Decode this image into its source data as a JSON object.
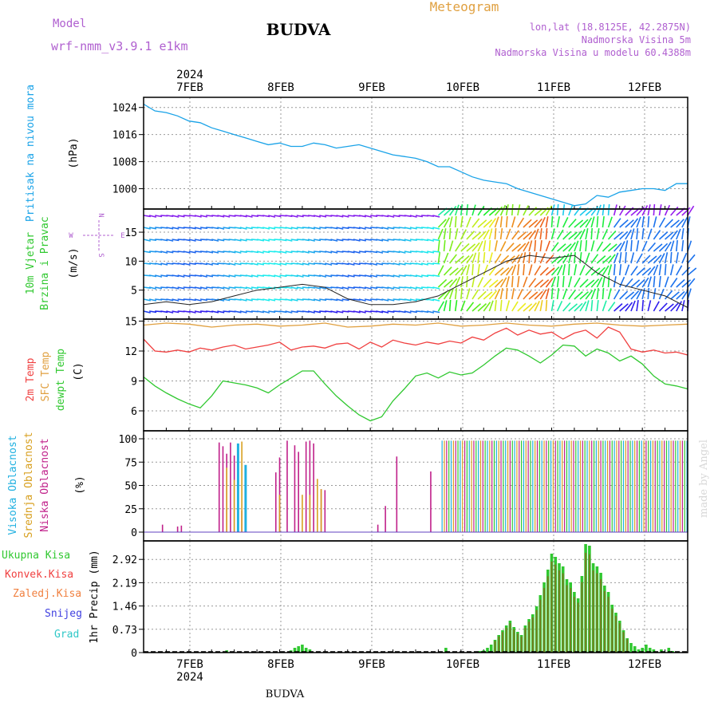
{
  "header": {
    "model_label": "Model",
    "model_name": "wrf-nmm_v3.9.1 e1km",
    "title": "BUDVA",
    "meteogram_label": "Meteogram",
    "coords": "lon,lat (18.8125E, 42.2875N)",
    "elevation": "Nadmorska Visina 5m",
    "model_elevation": "Nadmorska Visina u modelu 60.4388m",
    "footer_title": "BUDVA",
    "watermark": "made by Angel"
  },
  "colors": {
    "pressure": "#1aa3e8",
    "temp_2m": "#f04040",
    "temp_sfc": "#e0a040",
    "temp_dew": "#30c830",
    "cloud_high": "#20b0e0",
    "cloud_mid": "#d8a020",
    "cloud_low": "#c0208a",
    "precip_total": "#30c830",
    "precip_conv": "#e02020",
    "label_purple": "#b060d0",
    "label_orange": "#e0a040"
  },
  "time_axis": {
    "year": "2024",
    "days": [
      "7FEB",
      "8FEB",
      "9FEB",
      "10FEB",
      "11FEB",
      "12FEB"
    ],
    "start_hour": 0,
    "end_hour": 144
  },
  "chart_data": [
    {
      "type": "line",
      "panel": "pressure",
      "ylabel_main": "Pritisak na nivou mora",
      "unit": "(hPa)",
      "ylim": [
        994,
        1027
      ],
      "yticks": [
        "1000",
        "1008",
        "1016",
        "1024"
      ],
      "grid": true,
      "series": [
        {
          "x": [
            0,
            3,
            6,
            9,
            12,
            15,
            18,
            21,
            24,
            27,
            30,
            33,
            36,
            39,
            42,
            45,
            48,
            51,
            54,
            57,
            60,
            63,
            66,
            69,
            72,
            75,
            78,
            81,
            84,
            87,
            90,
            93,
            96,
            99,
            102,
            105,
            108,
            111,
            114,
            117,
            120,
            123,
            126,
            129,
            132,
            135,
            138,
            141,
            144
          ],
          "values": [
            1025,
            1023,
            1022.5,
            1021.5,
            1020,
            1019.5,
            1018,
            1017,
            1016,
            1015,
            1014,
            1013,
            1013.5,
            1012.5,
            1012.5,
            1013.5,
            1013,
            1012,
            1012.5,
            1013,
            1012,
            1011,
            1010,
            1009.5,
            1009,
            1008,
            1006.5,
            1006.5,
            1005,
            1003.5,
            1002.5,
            1002,
            1001.5,
            1000,
            999,
            998,
            997,
            996,
            995,
            995.5,
            998,
            997.5,
            999,
            999.5,
            1000,
            1000,
            999.5,
            1001.5,
            1001.5
          ]
        }
      ]
    },
    {
      "type": "line",
      "panel": "wind",
      "ylabel_main": "10m Vjetar",
      "ylabel_sub": "Brzina i Pravac",
      "unit": "(m/s)",
      "compass": [
        "N",
        "E",
        "S",
        "W"
      ],
      "ylim": [
        0,
        19
      ],
      "yticks": [
        "5",
        "10",
        "15"
      ],
      "grid": true,
      "series": [
        {
          "name": "speed",
          "x": [
            0,
            6,
            12,
            18,
            24,
            30,
            36,
            42,
            48,
            54,
            60,
            66,
            72,
            78,
            84,
            90,
            96,
            102,
            108,
            114,
            120,
            126,
            132,
            138,
            144
          ],
          "values": [
            2.5,
            3,
            2.5,
            3,
            4,
            5,
            5.5,
            6,
            5.5,
            3.5,
            2.5,
            2.5,
            3,
            4,
            6,
            8,
            10,
            11,
            10.5,
            11,
            8,
            6,
            5,
            4,
            2
          ]
        }
      ]
    },
    {
      "type": "line",
      "panel": "temperature",
      "ylabel_a": "2m Temp",
      "ylabel_b": "SFC Temp",
      "ylabel_c": "dewpt Temp",
      "unit": "(C)",
      "ylim": [
        4,
        15.2
      ],
      "yticks": [
        "6",
        "9",
        "12",
        "15"
      ],
      "grid": true,
      "series": [
        {
          "name": "2m",
          "x": [
            0,
            3,
            6,
            9,
            12,
            15,
            18,
            21,
            24,
            27,
            30,
            33,
            36,
            39,
            42,
            45,
            48,
            51,
            54,
            57,
            60,
            63,
            66,
            69,
            72,
            75,
            78,
            81,
            84,
            87,
            90,
            93,
            96,
            99,
            102,
            105,
            108,
            111,
            114,
            117,
            120,
            123,
            126,
            129,
            132,
            135,
            138,
            141,
            144
          ],
          "values": [
            13.2,
            12,
            11.9,
            12.1,
            11.9,
            12.3,
            12.1,
            12.4,
            12.6,
            12.2,
            12.4,
            12.6,
            12.9,
            12.1,
            12.4,
            12.5,
            12.3,
            12.7,
            12.8,
            12.2,
            12.9,
            12.4,
            13.1,
            12.8,
            12.6,
            12.9,
            12.7,
            13,
            12.8,
            13.4,
            13.1,
            13.8,
            14.3,
            13.6,
            14.1,
            13.7,
            13.9,
            13.2,
            13.8,
            14.1,
            13.3,
            14.4,
            13.9,
            12.2,
            11.9,
            12.1,
            11.8,
            11.9,
            11.6
          ]
        },
        {
          "name": "sfc",
          "x": [
            0,
            6,
            12,
            18,
            24,
            30,
            36,
            42,
            48,
            54,
            60,
            66,
            72,
            78,
            84,
            90,
            96,
            102,
            108,
            114,
            120,
            126,
            132,
            138,
            144
          ],
          "values": [
            14.6,
            14.8,
            14.7,
            14.4,
            14.6,
            14.7,
            14.5,
            14.6,
            14.8,
            14.4,
            14.5,
            14.7,
            14.6,
            14.8,
            14.5,
            14.6,
            14.8,
            14.6,
            14.5,
            14.7,
            14.8,
            14.6,
            14.5,
            14.6,
            14.7
          ]
        },
        {
          "name": "dewpoint",
          "x": [
            0,
            3,
            6,
            9,
            12,
            15,
            18,
            21,
            24,
            27,
            30,
            33,
            36,
            39,
            42,
            45,
            48,
            51,
            54,
            57,
            60,
            63,
            66,
            69,
            72,
            75,
            78,
            81,
            84,
            87,
            90,
            93,
            96,
            99,
            102,
            105,
            108,
            111,
            114,
            117,
            120,
            123,
            126,
            129,
            132,
            135,
            138,
            141,
            144
          ],
          "values": [
            9.4,
            8.5,
            7.8,
            7.2,
            6.7,
            6.3,
            7.5,
            9,
            8.8,
            8.6,
            8.3,
            7.8,
            8.6,
            9.3,
            10,
            10,
            8.7,
            7.5,
            6.5,
            5.6,
            5,
            5.4,
            7,
            8.2,
            9.5,
            9.8,
            9.3,
            9.9,
            9.6,
            9.8,
            10.6,
            11.5,
            12.3,
            12.1,
            11.5,
            10.8,
            11.6,
            12.6,
            12.5,
            11.5,
            12.2,
            11.8,
            11,
            11.5,
            10.7,
            9.5,
            8.7,
            8.5,
            8.2
          ]
        }
      ]
    },
    {
      "type": "bar",
      "panel": "clouds",
      "ylabel_a": "Visoka Oblacnost",
      "ylabel_b": "Srednja Oblacnost",
      "ylabel_c": "Niska Oblacnost",
      "unit": "(%)",
      "ylim": [
        0,
        100
      ],
      "yticks": [
        "0",
        "25",
        "50",
        "75",
        "100"
      ],
      "grid": true,
      "series": [
        {
          "name": "low",
          "x": [
            5,
            9,
            10,
            20,
            21,
            22,
            23,
            24,
            26,
            35,
            36,
            38,
            40,
            41,
            43,
            44,
            45,
            47,
            48,
            62,
            64,
            67,
            76
          ],
          "values": [
            8,
            6,
            7,
            96,
            92,
            84,
            96,
            82,
            23,
            64,
            80,
            98,
            93,
            86,
            97,
            98,
            95,
            46,
            45,
            8,
            28,
            81,
            65
          ]
        },
        {
          "name": "mid",
          "x": [
            22,
            24,
            26,
            36,
            42,
            44,
            46,
            47
          ],
          "values": [
            69,
            56,
            97,
            40,
            40,
            40,
            57,
            46
          ]
        },
        {
          "name": "high",
          "x": [
            25,
            27
          ],
          "values": [
            95,
            72
          ]
        }
      ],
      "dense_cover": {
        "from_hour": 79,
        "to_hour": 144,
        "value": 98
      }
    },
    {
      "type": "bar",
      "panel": "precip",
      "ylabel_a": "Ukupna Kisa",
      "ylabel_b": "Konvek.Kisa",
      "ylabel_c": "Zaledj.Kisa",
      "ylabel_d": "Snijeg",
      "ylabel_e": "Grad",
      "unit": "1hr Precip (mm)",
      "ylim": [
        0,
        3.5
      ],
      "yticks": [
        "0",
        "0.73",
        "1.46",
        "2.19",
        "2.92"
      ],
      "grid": true,
      "series": [
        {
          "name": "total",
          "x": [
            22,
            39,
            40,
            41,
            42,
            43,
            44,
            80,
            89,
            90,
            91,
            92,
            93,
            94,
            95,
            96,
            97,
            98,
            99,
            100,
            101,
            102,
            103,
            104,
            105,
            106,
            107,
            108,
            109,
            110,
            111,
            112,
            113,
            114,
            115,
            116,
            117,
            118,
            119,
            120,
            121,
            122,
            123,
            124,
            125,
            126,
            127,
            128,
            129,
            130,
            131,
            132,
            133,
            134,
            135,
            137,
            139,
            140
          ],
          "values": [
            0.07,
            0.07,
            0.15,
            0.2,
            0.25,
            0.15,
            0.1,
            0.15,
            0.05,
            0.07,
            0.15,
            0.25,
            0.4,
            0.55,
            0.7,
            0.85,
            1,
            0.8,
            0.65,
            0.55,
            0.85,
            1.05,
            1.2,
            1.45,
            1.8,
            2.2,
            2.6,
            3.1,
            3.0,
            2.8,
            2.7,
            2.3,
            2.2,
            1.9,
            1.7,
            2.4,
            3.4,
            3.35,
            2.8,
            2.7,
            2.5,
            2.1,
            1.9,
            1.5,
            1.25,
            1.0,
            0.7,
            0.45,
            0.3,
            0.2,
            0.1,
            0.15,
            0.25,
            0.15,
            0.1,
            0.1,
            0.15,
            0.05
          ]
        }
      ]
    }
  ]
}
